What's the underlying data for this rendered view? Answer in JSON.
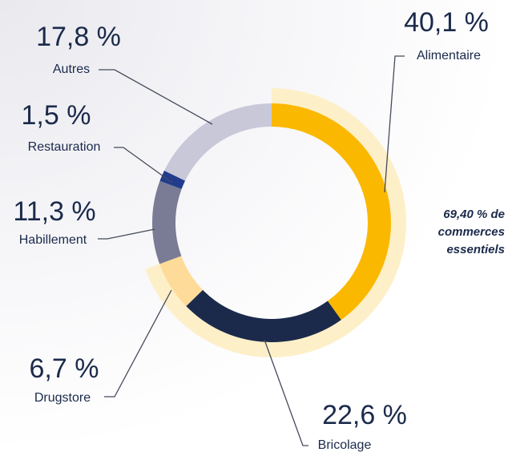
{
  "chart_data": {
    "type": "donut",
    "categories": [
      "Alimentaire",
      "Bricolage",
      "Drugstore",
      "Habillement",
      "Restauration",
      "Autres"
    ],
    "values": [
      40.1,
      22.6,
      6.7,
      11.3,
      1.5,
      17.8
    ],
    "value_labels": [
      "40,1 %",
      "22,6 %",
      "6,7 %",
      "11,3 %",
      "1,5 %",
      "17,8 %"
    ],
    "colors": [
      "#fbb800",
      "#1b2a4b",
      "#fedb98",
      "#7a7b94",
      "#213c8c",
      "#c8c8d8"
    ],
    "highlight": {
      "categories": [
        0,
        1,
        2
      ],
      "color": "#fdefc8"
    },
    "annotation": [
      "69,40 % de",
      "commerces",
      "essentiels"
    ]
  }
}
